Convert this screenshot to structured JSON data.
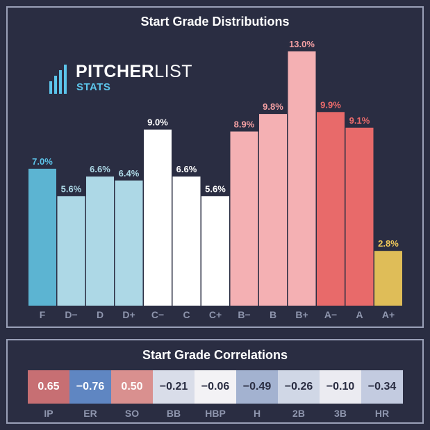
{
  "chart_data": {
    "type": "bar",
    "title": "Start Grade Distributions",
    "categories": [
      "F",
      "D−",
      "D",
      "D+",
      "C−",
      "C",
      "C+",
      "B−",
      "B",
      "B+",
      "A−",
      "A",
      "A+"
    ],
    "values": [
      7.0,
      5.6,
      6.6,
      6.4,
      9.0,
      6.6,
      5.6,
      8.9,
      9.8,
      13.0,
      9.9,
      9.1,
      2.8
    ],
    "value_labels": [
      "7.0%",
      "5.6%",
      "6.6%",
      "6.4%",
      "9.0%",
      "6.6%",
      "5.6%",
      "8.9%",
      "9.8%",
      "13.0%",
      "9.9%",
      "9.1%",
      "2.8%"
    ],
    "bar_colors": [
      "#5cb4d2",
      "#add8e6",
      "#add8e6",
      "#add8e6",
      "#ffffff",
      "#ffffff",
      "#ffffff",
      "#f4b0b3",
      "#f4b0b3",
      "#f4b0b3",
      "#e86a6a",
      "#e86a6a",
      "#dfbd58"
    ],
    "label_colors": [
      "#5cc4ea",
      "#add8e6",
      "#add8e6",
      "#add8e6",
      "#ffffff",
      "#ffffff",
      "#ffffff",
      "#f4a0a3",
      "#f4a0a3",
      "#f4a0a3",
      "#ee6b6b",
      "#ee6b6b",
      "#f0c95a"
    ],
    "ylim": [
      0,
      13.0
    ],
    "xlabel": "",
    "ylabel": "",
    "grid": false
  },
  "correlations": {
    "title": "Start Grade Correlations",
    "items": [
      {
        "stat": "IP",
        "value": "0.65",
        "bg": "#c76f73",
        "fg": "#ffffff"
      },
      {
        "stat": "ER",
        "value": "−0.76",
        "bg": "#5f86c2",
        "fg": "#ffffff"
      },
      {
        "stat": "SO",
        "value": "0.50",
        "bg": "#d9908f",
        "fg": "#ffffff"
      },
      {
        "stat": "BB",
        "value": "−0.21",
        "bg": "#d9dde9",
        "fg": "#2a2d42"
      },
      {
        "stat": "HBP",
        "value": "−0.06",
        "bg": "#f3f2f5",
        "fg": "#2a2d42"
      },
      {
        "stat": "H",
        "value": "−0.49",
        "bg": "#a3b2d0",
        "fg": "#2a2d42"
      },
      {
        "stat": "2B",
        "value": "−0.26",
        "bg": "#d0d7e6",
        "fg": "#2a2d42"
      },
      {
        "stat": "3B",
        "value": "−0.10",
        "bg": "#ebebf1",
        "fg": "#2a2d42"
      },
      {
        "stat": "HR",
        "value": "−0.34",
        "bg": "#c3cbe0",
        "fg": "#2a2d42"
      }
    ]
  },
  "logo": {
    "word1": "PITCHER",
    "word2": "LIST",
    "word3": "STATS"
  },
  "colors": {
    "background": "#2a2d42",
    "border": "#9aa0b8",
    "axis_label": "#8f96ae"
  }
}
